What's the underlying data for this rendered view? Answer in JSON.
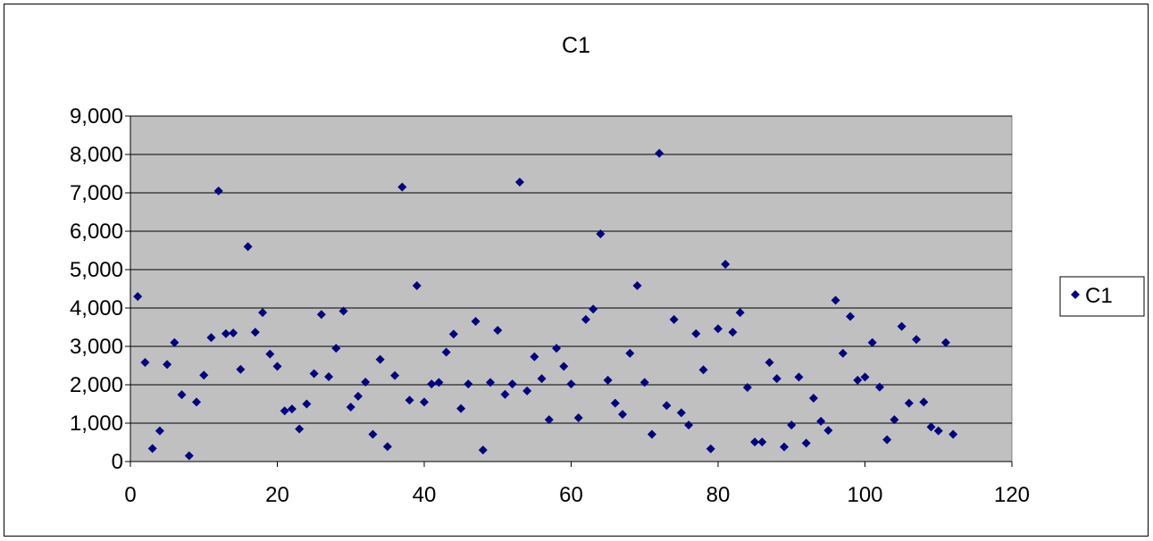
{
  "chart_data": {
    "type": "scatter",
    "title": "C1",
    "xlabel": "",
    "ylabel": "",
    "xlim": [
      0,
      120
    ],
    "ylim": [
      0,
      9000
    ],
    "x_ticks": [
      0,
      20,
      40,
      60,
      80,
      100,
      120
    ],
    "x_tick_labels": [
      "0",
      "20",
      "40",
      "60",
      "80",
      "100",
      "120"
    ],
    "y_ticks": [
      0,
      1000,
      2000,
      3000,
      4000,
      5000,
      6000,
      7000,
      8000,
      9000
    ],
    "y_tick_labels": [
      "0",
      "1,000",
      "2,000",
      "3,000",
      "4,000",
      "5,000",
      "6,000",
      "7,000",
      "8,000",
      "9,000"
    ],
    "grid": "horizontal",
    "legend": {
      "position": "right",
      "entries": [
        "C1"
      ]
    },
    "colors": {
      "marker": "#000080",
      "plot_background": "#c0c0c0",
      "gridline": "#000000"
    },
    "series": [
      {
        "name": "C1",
        "points": [
          [
            1,
            4300
          ],
          [
            2,
            2580
          ],
          [
            3,
            340
          ],
          [
            4,
            800
          ],
          [
            5,
            2530
          ],
          [
            6,
            3100
          ],
          [
            7,
            1740
          ],
          [
            8,
            150
          ],
          [
            9,
            1550
          ],
          [
            10,
            2250
          ],
          [
            11,
            3230
          ],
          [
            12,
            7050
          ],
          [
            13,
            3330
          ],
          [
            14,
            3350
          ],
          [
            15,
            2400
          ],
          [
            16,
            5600
          ],
          [
            17,
            3370
          ],
          [
            18,
            3880
          ],
          [
            19,
            2800
          ],
          [
            20,
            2480
          ],
          [
            21,
            1320
          ],
          [
            22,
            1370
          ],
          [
            23,
            850
          ],
          [
            24,
            1500
          ],
          [
            25,
            2290
          ],
          [
            26,
            3830
          ],
          [
            27,
            2210
          ],
          [
            28,
            2950
          ],
          [
            29,
            3920
          ],
          [
            30,
            1420
          ],
          [
            31,
            1700
          ],
          [
            32,
            2070
          ],
          [
            33,
            710
          ],
          [
            34,
            2660
          ],
          [
            35,
            390
          ],
          [
            36,
            2240
          ],
          [
            37,
            7150
          ],
          [
            38,
            1600
          ],
          [
            39,
            4580
          ],
          [
            40,
            1550
          ],
          [
            41,
            2020
          ],
          [
            42,
            2060
          ],
          [
            43,
            2850
          ],
          [
            44,
            3320
          ],
          [
            45,
            1380
          ],
          [
            46,
            2020
          ],
          [
            47,
            3650
          ],
          [
            48,
            300
          ],
          [
            49,
            2060
          ],
          [
            50,
            3420
          ],
          [
            51,
            1750
          ],
          [
            52,
            2020
          ],
          [
            53,
            7280
          ],
          [
            54,
            1840
          ],
          [
            55,
            2730
          ],
          [
            56,
            2160
          ],
          [
            57,
            1090
          ],
          [
            58,
            2950
          ],
          [
            59,
            2480
          ],
          [
            60,
            2020
          ],
          [
            61,
            1140
          ],
          [
            62,
            3700
          ],
          [
            63,
            3970
          ],
          [
            64,
            5930
          ],
          [
            65,
            2120
          ],
          [
            66,
            1520
          ],
          [
            67,
            1230
          ],
          [
            68,
            2820
          ],
          [
            69,
            4580
          ],
          [
            70,
            2060
          ],
          [
            71,
            710
          ],
          [
            72,
            8030
          ],
          [
            73,
            1460
          ],
          [
            74,
            3700
          ],
          [
            75,
            1270
          ],
          [
            76,
            950
          ],
          [
            77,
            3330
          ],
          [
            78,
            2390
          ],
          [
            79,
            330
          ],
          [
            80,
            3460
          ],
          [
            81,
            5140
          ],
          [
            82,
            3370
          ],
          [
            83,
            3880
          ],
          [
            84,
            1930
          ],
          [
            85,
            510
          ],
          [
            86,
            510
          ],
          [
            87,
            2580
          ],
          [
            88,
            2160
          ],
          [
            89,
            380
          ],
          [
            90,
            950
          ],
          [
            91,
            2200
          ],
          [
            92,
            480
          ],
          [
            93,
            1650
          ],
          [
            94,
            1050
          ],
          [
            95,
            810
          ],
          [
            96,
            4200
          ],
          [
            97,
            2820
          ],
          [
            98,
            3780
          ],
          [
            99,
            2120
          ],
          [
            100,
            2200
          ],
          [
            101,
            3100
          ],
          [
            102,
            1940
          ],
          [
            103,
            570
          ],
          [
            104,
            1090
          ],
          [
            105,
            3520
          ],
          [
            106,
            1520
          ],
          [
            107,
            3180
          ],
          [
            108,
            1550
          ],
          [
            109,
            900
          ],
          [
            110,
            800
          ],
          [
            111,
            3100
          ],
          [
            112,
            710
          ]
        ]
      }
    ]
  }
}
